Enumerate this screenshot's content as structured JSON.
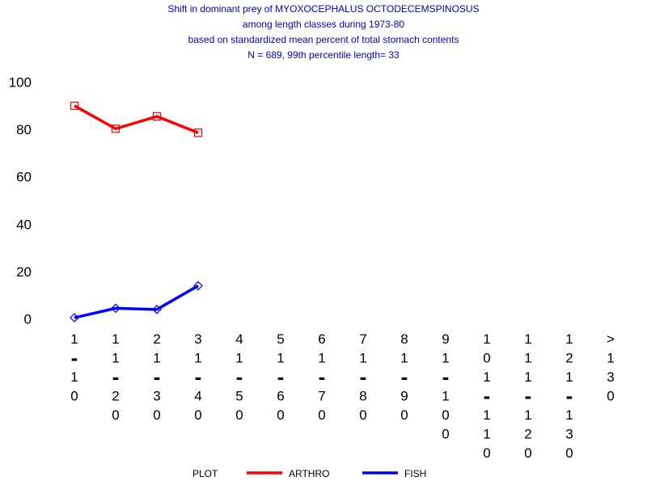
{
  "chart_data": {
    "type": "line",
    "title": [
      "Shift in dominant prey of MYOXOCEPHALUS OCTODECEMSPINOSUS",
      "among length classes during 1973-80",
      "based on standardized mean percent of  total stomach contents",
      "N =  689, 99th percentile  length= 33"
    ],
    "categories": [
      "1-10",
      "11-20",
      "21-30",
      "31-40",
      "41-50",
      "51-60",
      "61-70",
      "71-80",
      "81-90",
      "91-100",
      "101-110",
      "111-120",
      "121-130",
      ">130"
    ],
    "series": [
      {
        "name": "ARTHRO",
        "color": "#ff0000",
        "marker": "square",
        "values": [
          90.5,
          80.8,
          86.0,
          79.1,
          null,
          null,
          null,
          null,
          null,
          null,
          null,
          null,
          null,
          null
        ]
      },
      {
        "name": "FISH",
        "color": "#0000ff",
        "marker": "diamond",
        "values": [
          1.0,
          5.0,
          4.5,
          14.5,
          null,
          null,
          null,
          null,
          null,
          null,
          null,
          null,
          null,
          null
        ]
      }
    ],
    "legend_title": "PLOT",
    "ylim": [
      0,
      100
    ],
    "yticks": [
      0,
      20,
      40,
      60,
      80,
      100
    ]
  }
}
